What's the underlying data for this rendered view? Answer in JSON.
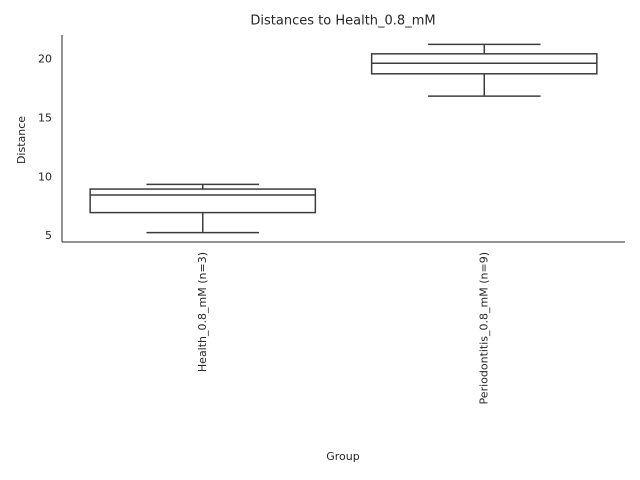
{
  "chart_data": {
    "type": "box",
    "title": "Distances to Health_0.8_mM",
    "x_label": "Group",
    "y_label": "Distance",
    "categories": [
      "Health_0.8_mM (n=3)",
      "Periodontitis_0.8_mM (n=9)"
    ],
    "whisker_low": [
      5.3,
      16.9
    ],
    "q1": [
      7.0,
      18.8
    ],
    "median": [
      8.5,
      19.7
    ],
    "q3": [
      9.0,
      20.5
    ],
    "whisker_high": [
      9.4,
      21.3
    ],
    "color": "#3d3d3d",
    "fill": "#ffffff",
    "ylim": [
      4.5,
      22.1
    ],
    "yticks": [
      5,
      10,
      15,
      20
    ],
    "grid": false
  }
}
